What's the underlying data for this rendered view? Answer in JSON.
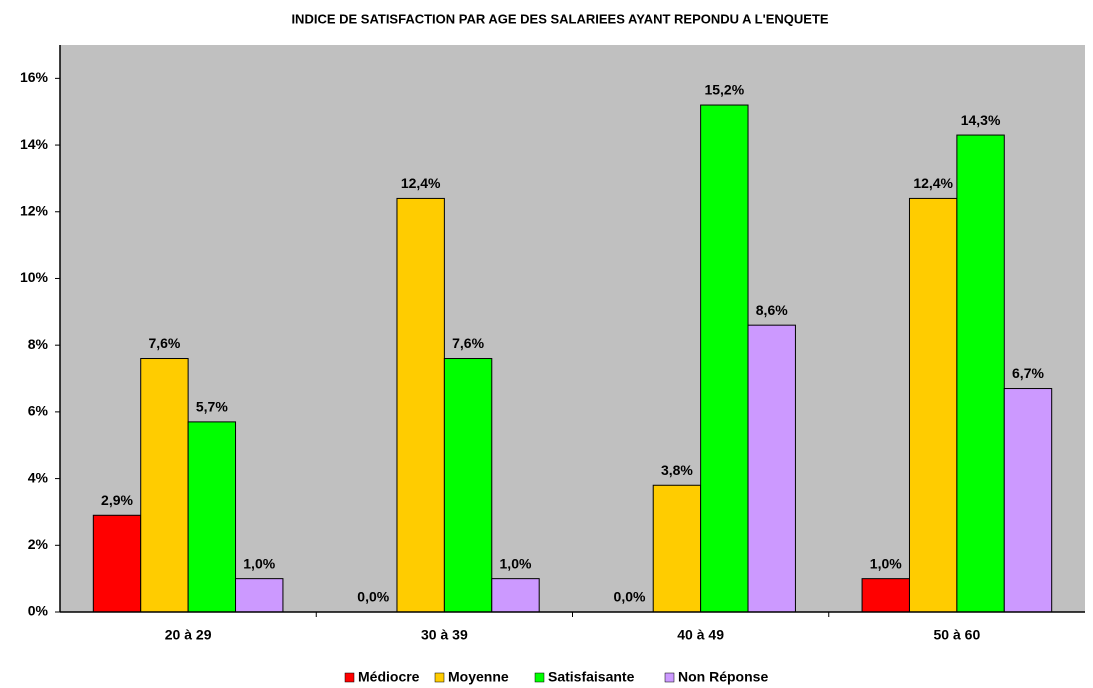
{
  "chart_data": {
    "type": "bar",
    "title": "INDICE DE SATISFACTION PAR AGE DES SALARIEES AYANT REPONDU A L'ENQUETE",
    "categories": [
      "20 à 29",
      "30 à 39",
      "40 à 49",
      "50 à 60"
    ],
    "series": [
      {
        "name": "Médiocre",
        "color": "#FF0000",
        "values": [
          2.9,
          0,
          0,
          1.0
        ],
        "value_labels": [
          "2,9%",
          "0,0%",
          "0,0%",
          "1,0%"
        ]
      },
      {
        "name": "Moyenne",
        "color": "#FFCC00",
        "values": [
          7.6,
          12.4,
          3.8,
          12.4
        ],
        "value_labels": [
          "7,6%",
          "12,4%",
          "3,8%",
          "12,4%"
        ]
      },
      {
        "name": "Satisfaisante",
        "color": "#00FF00",
        "values": [
          5.7,
          7.6,
          15.2,
          14.3
        ],
        "value_labels": [
          "5,7%",
          "7,6%",
          "15,2%",
          "14,3%"
        ]
      },
      {
        "name": "Non Réponse",
        "color": "#CC99FF",
        "values": [
          1.0,
          1.0,
          8.6,
          6.7
        ],
        "value_labels": [
          "1,0%",
          "1,0%",
          "8,6%",
          "6,7%"
        ]
      }
    ],
    "ylim": [
      0,
      17
    ],
    "yticks": [
      {
        "value": 0,
        "label": "0%"
      },
      {
        "value": 2,
        "label": "2%"
      },
      {
        "value": 4,
        "label": "4%"
      },
      {
        "value": 6,
        "label": "6%"
      },
      {
        "value": 8,
        "label": "8%"
      },
      {
        "value": 10,
        "label": "10%"
      },
      {
        "value": 12,
        "label": "12%"
      },
      {
        "value": 14,
        "label": "14%"
      },
      {
        "value": 16,
        "label": "16%"
      }
    ],
    "grid": false,
    "legend": "bottom",
    "plot_background": "#C0C0C0"
  }
}
